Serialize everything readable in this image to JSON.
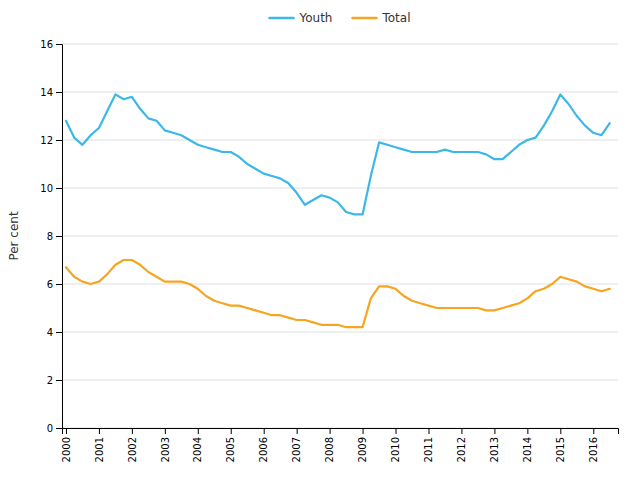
{
  "chart_data": {
    "type": "line",
    "ylabel": "Per cent",
    "x": [
      2000.0,
      2000.25,
      2000.5,
      2000.75,
      2001.0,
      2001.25,
      2001.5,
      2001.75,
      2002.0,
      2002.25,
      2002.5,
      2002.75,
      2003.0,
      2003.25,
      2003.5,
      2003.75,
      2004.0,
      2004.25,
      2004.5,
      2004.75,
      2005.0,
      2005.25,
      2005.5,
      2005.75,
      2006.0,
      2006.25,
      2006.5,
      2006.75,
      2007.0,
      2007.25,
      2007.5,
      2007.75,
      2008.0,
      2008.25,
      2008.5,
      2008.75,
      2009.0,
      2009.25,
      2009.5,
      2009.75,
      2010.0,
      2010.25,
      2010.5,
      2010.75,
      2011.0,
      2011.25,
      2011.5,
      2011.75,
      2012.0,
      2012.25,
      2012.5,
      2012.75,
      2013.0,
      2013.25,
      2013.5,
      2013.75,
      2014.0,
      2014.25,
      2014.5,
      2014.75,
      2015.0,
      2015.25,
      2015.5,
      2015.75,
      2016.0,
      2016.25,
      2016.5
    ],
    "series": [
      {
        "name": "Youth",
        "color": "#3BB8E8",
        "values": [
          12.8,
          12.1,
          11.8,
          12.2,
          12.5,
          13.2,
          13.9,
          13.7,
          13.8,
          13.3,
          12.9,
          12.8,
          12.4,
          12.3,
          12.2,
          12.0,
          11.8,
          11.7,
          11.6,
          11.5,
          11.5,
          11.3,
          11.0,
          10.8,
          10.6,
          10.5,
          10.4,
          10.2,
          9.8,
          9.3,
          9.5,
          9.7,
          9.6,
          9.4,
          9.0,
          8.9,
          8.9,
          10.5,
          11.9,
          11.8,
          11.7,
          11.6,
          11.5,
          11.5,
          11.5,
          11.5,
          11.6,
          11.5,
          11.5,
          11.5,
          11.5,
          11.4,
          11.2,
          11.2,
          11.5,
          11.8,
          12.0,
          12.1,
          12.6,
          13.2,
          13.9,
          13.5,
          13.0,
          12.6,
          12.3,
          12.2,
          12.7
        ]
      },
      {
        "name": "Total",
        "color": "#F5A520",
        "values": [
          6.7,
          6.3,
          6.1,
          6.0,
          6.1,
          6.4,
          6.8,
          7.0,
          7.0,
          6.8,
          6.5,
          6.3,
          6.1,
          6.1,
          6.1,
          6.0,
          5.8,
          5.5,
          5.3,
          5.2,
          5.1,
          5.1,
          5.0,
          4.9,
          4.8,
          4.7,
          4.7,
          4.6,
          4.5,
          4.5,
          4.4,
          4.3,
          4.3,
          4.3,
          4.2,
          4.2,
          4.2,
          5.4,
          5.9,
          5.9,
          5.8,
          5.5,
          5.3,
          5.2,
          5.1,
          5.0,
          5.0,
          5.0,
          5.0,
          5.0,
          5.0,
          4.9,
          4.9,
          5.0,
          5.1,
          5.2,
          5.4,
          5.7,
          5.8,
          6.0,
          6.3,
          6.2,
          6.1,
          5.9,
          5.8,
          5.7,
          5.8
        ]
      }
    ],
    "xlim": [
      1999.88,
      2016.75
    ],
    "xticks": [
      2000,
      2001,
      2002,
      2003,
      2004,
      2005,
      2006,
      2007,
      2008,
      2009,
      2010,
      2011,
      2012,
      2013,
      2014,
      2015,
      2016
    ],
    "ylim": [
      0,
      16
    ],
    "yticks": [
      0,
      2,
      4,
      6,
      8,
      10,
      12,
      14,
      16
    ],
    "grid": true,
    "legend": "top"
  }
}
